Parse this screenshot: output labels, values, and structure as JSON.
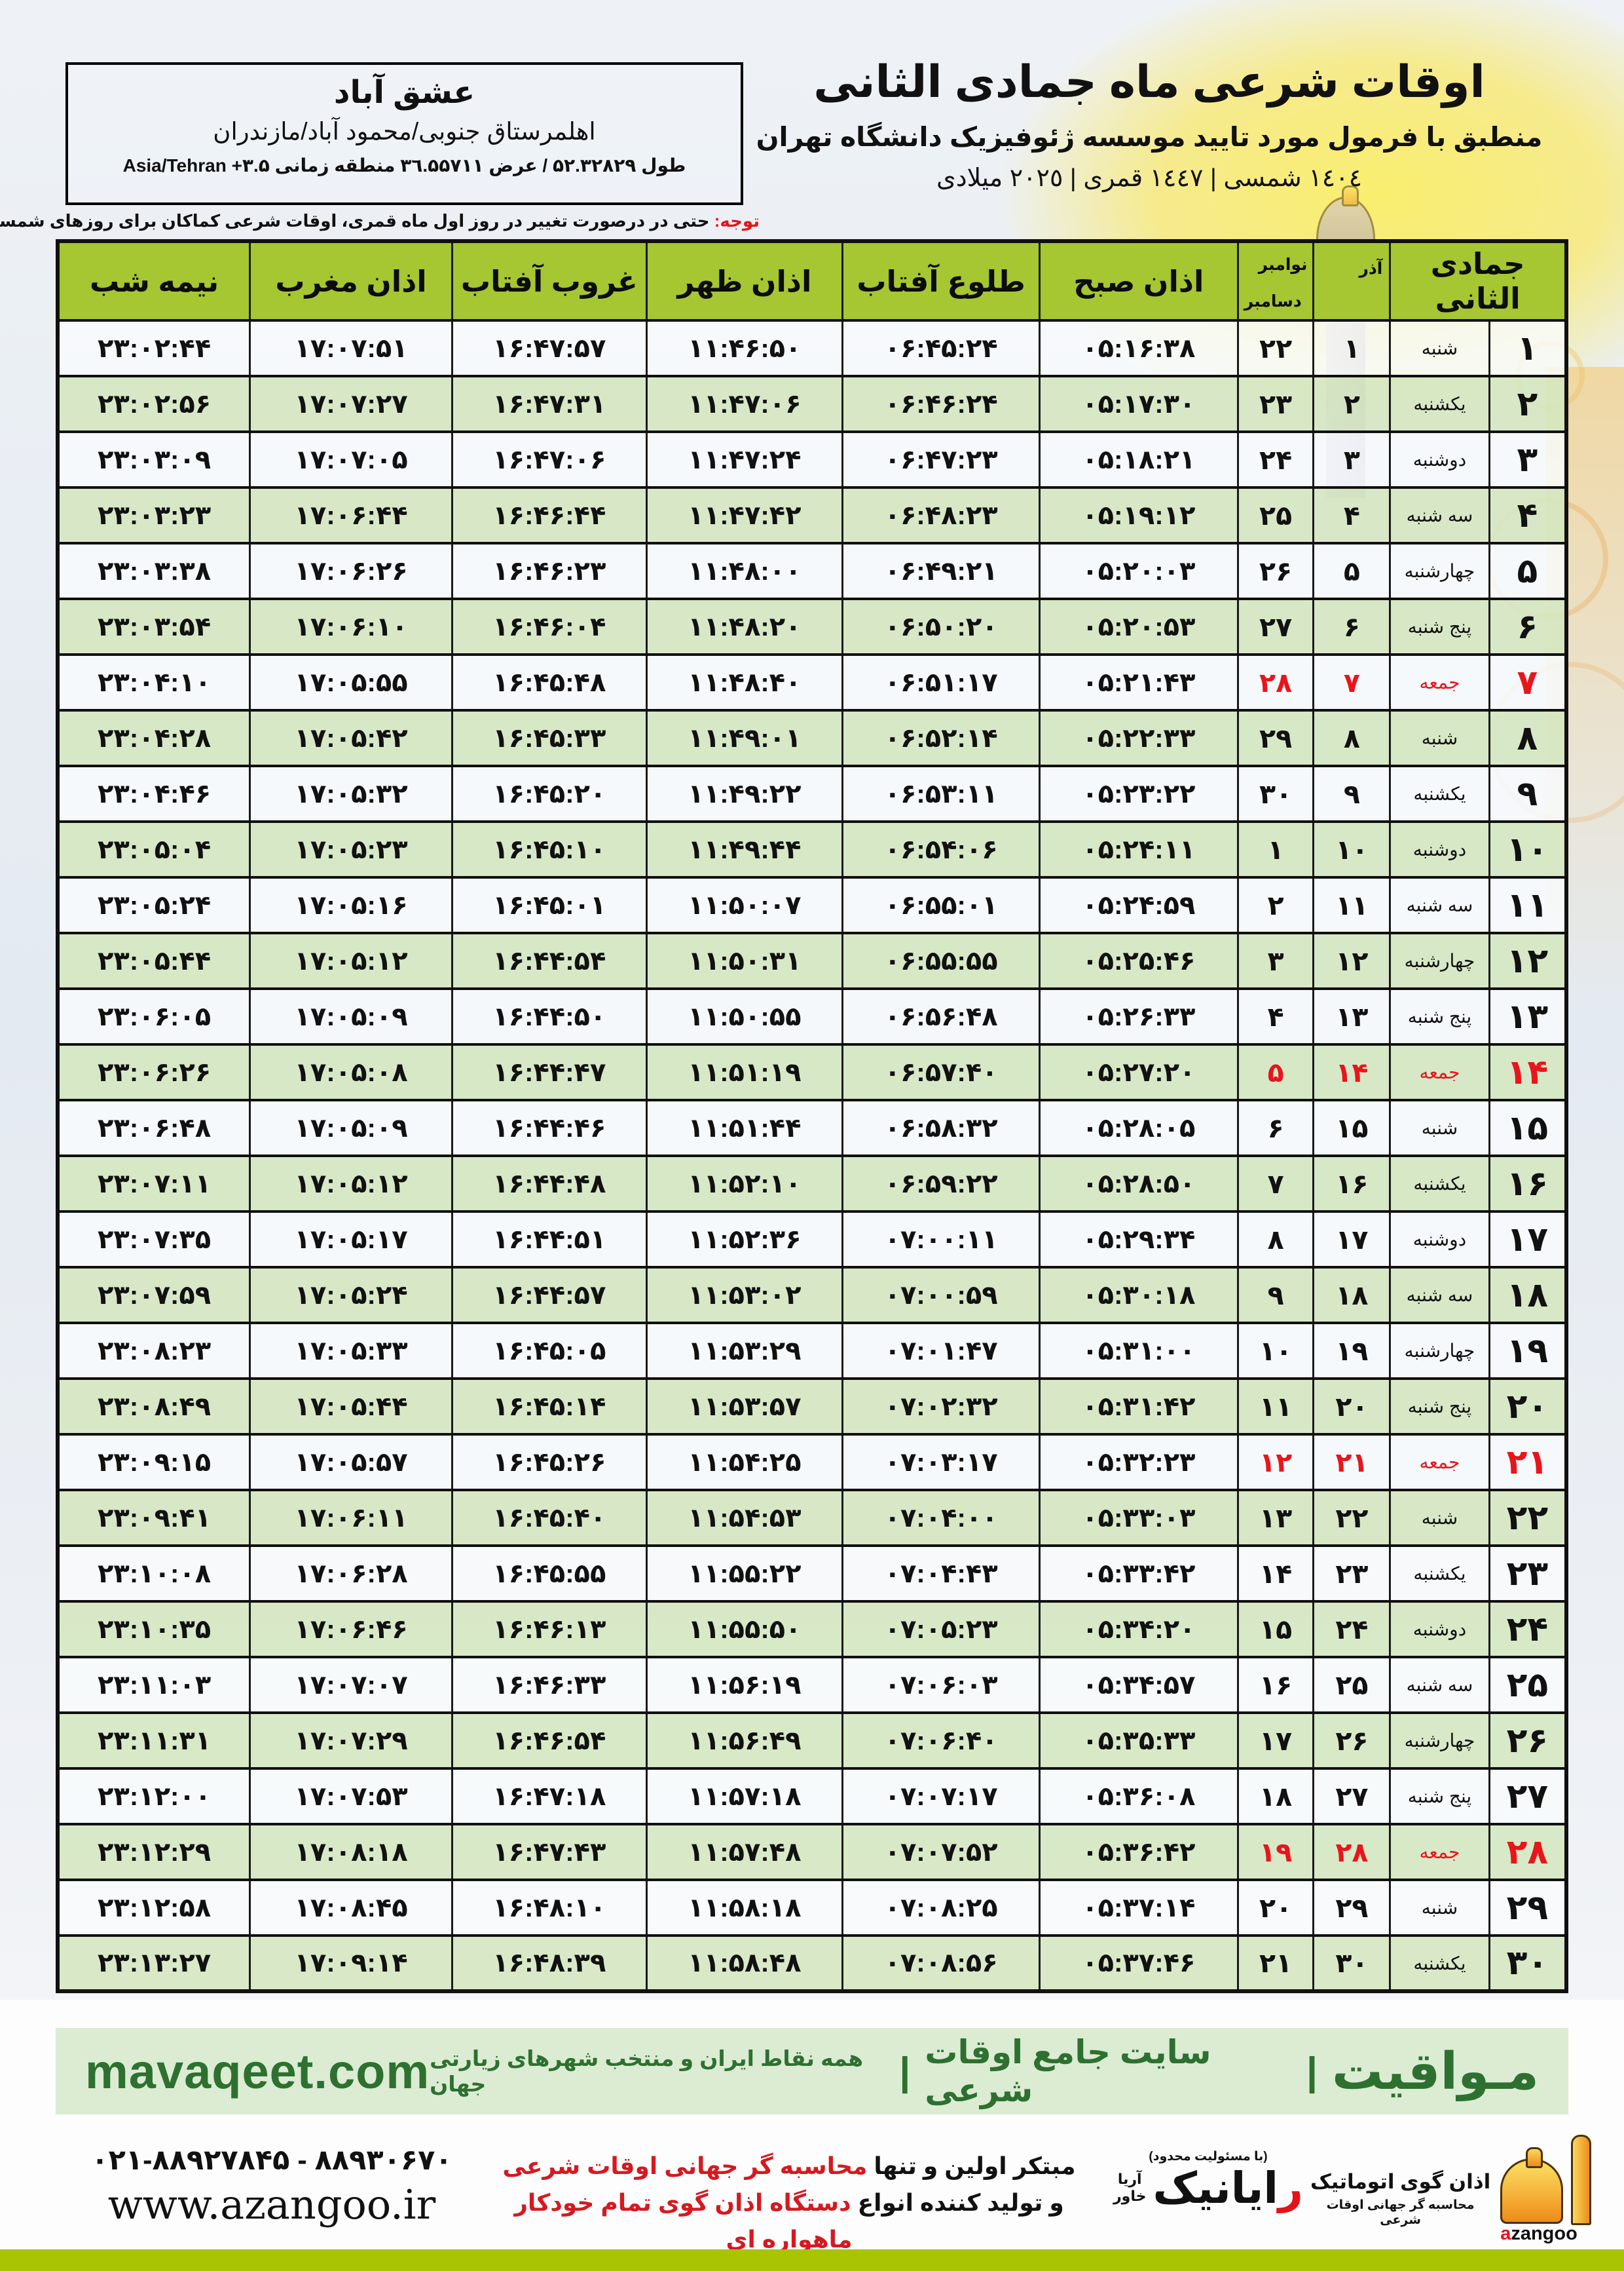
{
  "location": {
    "city": "عشق آباد",
    "region": "اهلمرستاق جنوبی/محمود آباد/مازندران",
    "coords": "طول ۵۲.۳۲۸۲۹ / عرض ۳٦.۵۵۷۱۱ منطقه زمانی Asia/Tehran +۳.۵"
  },
  "header": {
    "title": "اوقات شرعی ماه جمادی الثانی",
    "subtitle": "منطبق با فرمول مورد تایید موسسه ژئوفیزیک دانشگاه تهران",
    "dates": "١٤٠٤ شمسی | ١٤٤٧ قمری | ٢٠٢٥ میلادی"
  },
  "notice": {
    "label": "توجه:",
    "text": " حتی در درصورت تغییر در روز اول ماه قمری، اوقات شرعی کماکان برای روزهای شمسی و میلادی معتبر است."
  },
  "table": {
    "columns": {
      "month": "جمادی الثانی",
      "azar": "آذر",
      "nov": "نوامبر",
      "dec": "دسامبر",
      "fajr": "اذان صبح",
      "sunrise": "طلوع آفتاب",
      "dhuhr": "اذان ظهر",
      "sunset": "غروب آفتاب",
      "maghrib": "اذان مغرب",
      "midnight": "نیمه شب"
    },
    "rows": [
      {
        "day": 1,
        "weekday": "شنبه",
        "azar": 1,
        "greg": 22,
        "fajr": "05:16:38",
        "sunrise": "06:45:24",
        "dhuhr": "11:46:50",
        "sunset": "16:47:57",
        "maghrib": "17:07:51",
        "midnight": "23:02:44",
        "friday": false
      },
      {
        "day": 2,
        "weekday": "یکشنبه",
        "azar": 2,
        "greg": 23,
        "fajr": "05:17:30",
        "sunrise": "06:46:24",
        "dhuhr": "11:47:06",
        "sunset": "16:47:31",
        "maghrib": "17:07:27",
        "midnight": "23:02:56",
        "friday": false
      },
      {
        "day": 3,
        "weekday": "دوشنبه",
        "azar": 3,
        "greg": 24,
        "fajr": "05:18:21",
        "sunrise": "06:47:23",
        "dhuhr": "11:47:24",
        "sunset": "16:47:06",
        "maghrib": "17:07:05",
        "midnight": "23:03:09",
        "friday": false
      },
      {
        "day": 4,
        "weekday": "سه شنبه",
        "azar": 4,
        "greg": 25,
        "fajr": "05:19:12",
        "sunrise": "06:48:23",
        "dhuhr": "11:47:42",
        "sunset": "16:46:44",
        "maghrib": "17:06:44",
        "midnight": "23:03:23",
        "friday": false
      },
      {
        "day": 5,
        "weekday": "چهارشنبه",
        "azar": 5,
        "greg": 26,
        "fajr": "05:20:03",
        "sunrise": "06:49:21",
        "dhuhr": "11:48:00",
        "sunset": "16:46:23",
        "maghrib": "17:06:26",
        "midnight": "23:03:38",
        "friday": false
      },
      {
        "day": 6,
        "weekday": "پنج شنبه",
        "azar": 6,
        "greg": 27,
        "fajr": "05:20:53",
        "sunrise": "06:50:20",
        "dhuhr": "11:48:20",
        "sunset": "16:46:04",
        "maghrib": "17:06:10",
        "midnight": "23:03:54",
        "friday": false
      },
      {
        "day": 7,
        "weekday": "جمعه",
        "azar": 7,
        "greg": 28,
        "fajr": "05:21:43",
        "sunrise": "06:51:17",
        "dhuhr": "11:48:40",
        "sunset": "16:45:48",
        "maghrib": "17:05:55",
        "midnight": "23:04:10",
        "friday": true
      },
      {
        "day": 8,
        "weekday": "شنبه",
        "azar": 8,
        "greg": 29,
        "fajr": "05:22:33",
        "sunrise": "06:52:14",
        "dhuhr": "11:49:01",
        "sunset": "16:45:33",
        "maghrib": "17:05:42",
        "midnight": "23:04:28",
        "friday": false
      },
      {
        "day": 9,
        "weekday": "یکشنبه",
        "azar": 9,
        "greg": 30,
        "fajr": "05:23:22",
        "sunrise": "06:53:11",
        "dhuhr": "11:49:22",
        "sunset": "16:45:20",
        "maghrib": "17:05:32",
        "midnight": "23:04:46",
        "friday": false
      },
      {
        "day": 10,
        "weekday": "دوشنبه",
        "azar": 10,
        "greg": 1,
        "fajr": "05:24:11",
        "sunrise": "06:54:06",
        "dhuhr": "11:49:44",
        "sunset": "16:45:10",
        "maghrib": "17:05:23",
        "midnight": "23:05:04",
        "friday": false
      },
      {
        "day": 11,
        "weekday": "سه شنبه",
        "azar": 11,
        "greg": 2,
        "fajr": "05:24:59",
        "sunrise": "06:55:01",
        "dhuhr": "11:50:07",
        "sunset": "16:45:01",
        "maghrib": "17:05:16",
        "midnight": "23:05:24",
        "friday": false
      },
      {
        "day": 12,
        "weekday": "چهارشنبه",
        "azar": 12,
        "greg": 3,
        "fajr": "05:25:46",
        "sunrise": "06:55:55",
        "dhuhr": "11:50:31",
        "sunset": "16:44:54",
        "maghrib": "17:05:12",
        "midnight": "23:05:44",
        "friday": false
      },
      {
        "day": 13,
        "weekday": "پنج شنبه",
        "azar": 13,
        "greg": 4,
        "fajr": "05:26:33",
        "sunrise": "06:56:48",
        "dhuhr": "11:50:55",
        "sunset": "16:44:50",
        "maghrib": "17:05:09",
        "midnight": "23:06:05",
        "friday": false
      },
      {
        "day": 14,
        "weekday": "جمعه",
        "azar": 14,
        "greg": 5,
        "fajr": "05:27:20",
        "sunrise": "06:57:40",
        "dhuhr": "11:51:19",
        "sunset": "16:44:47",
        "maghrib": "17:05:08",
        "midnight": "23:06:26",
        "friday": true
      },
      {
        "day": 15,
        "weekday": "شنبه",
        "azar": 15,
        "greg": 6,
        "fajr": "05:28:05",
        "sunrise": "06:58:32",
        "dhuhr": "11:51:44",
        "sunset": "16:44:46",
        "maghrib": "17:05:09",
        "midnight": "23:06:48",
        "friday": false
      },
      {
        "day": 16,
        "weekday": "یکشنبه",
        "azar": 16,
        "greg": 7,
        "fajr": "05:28:50",
        "sunrise": "06:59:22",
        "dhuhr": "11:52:10",
        "sunset": "16:44:48",
        "maghrib": "17:05:12",
        "midnight": "23:07:11",
        "friday": false
      },
      {
        "day": 17,
        "weekday": "دوشنبه",
        "azar": 17,
        "greg": 8,
        "fajr": "05:29:34",
        "sunrise": "07:00:11",
        "dhuhr": "11:52:36",
        "sunset": "16:44:51",
        "maghrib": "17:05:17",
        "midnight": "23:07:35",
        "friday": false
      },
      {
        "day": 18,
        "weekday": "سه شنبه",
        "azar": 18,
        "greg": 9,
        "fajr": "05:30:18",
        "sunrise": "07:00:59",
        "dhuhr": "11:53:02",
        "sunset": "16:44:57",
        "maghrib": "17:05:24",
        "midnight": "23:07:59",
        "friday": false
      },
      {
        "day": 19,
        "weekday": "چهارشنبه",
        "azar": 19,
        "greg": 10,
        "fajr": "05:31:00",
        "sunrise": "07:01:47",
        "dhuhr": "11:53:29",
        "sunset": "16:45:05",
        "maghrib": "17:05:33",
        "midnight": "23:08:23",
        "friday": false
      },
      {
        "day": 20,
        "weekday": "پنج شنبه",
        "azar": 20,
        "greg": 11,
        "fajr": "05:31:42",
        "sunrise": "07:02:32",
        "dhuhr": "11:53:57",
        "sunset": "16:45:14",
        "maghrib": "17:05:44",
        "midnight": "23:08:49",
        "friday": false
      },
      {
        "day": 21,
        "weekday": "جمعه",
        "azar": 21,
        "greg": 12,
        "fajr": "05:32:23",
        "sunrise": "07:03:17",
        "dhuhr": "11:54:25",
        "sunset": "16:45:26",
        "maghrib": "17:05:57",
        "midnight": "23:09:15",
        "friday": true
      },
      {
        "day": 22,
        "weekday": "شنبه",
        "azar": 22,
        "greg": 13,
        "fajr": "05:33:03",
        "sunrise": "07:04:00",
        "dhuhr": "11:54:53",
        "sunset": "16:45:40",
        "maghrib": "17:06:11",
        "midnight": "23:09:41",
        "friday": false
      },
      {
        "day": 23,
        "weekday": "یکشنبه",
        "azar": 23,
        "greg": 14,
        "fajr": "05:33:42",
        "sunrise": "07:04:43",
        "dhuhr": "11:55:22",
        "sunset": "16:45:55",
        "maghrib": "17:06:28",
        "midnight": "23:10:08",
        "friday": false
      },
      {
        "day": 24,
        "weekday": "دوشنبه",
        "azar": 24,
        "greg": 15,
        "fajr": "05:34:20",
        "sunrise": "07:05:23",
        "dhuhr": "11:55:50",
        "sunset": "16:46:13",
        "maghrib": "17:06:46",
        "midnight": "23:10:35",
        "friday": false
      },
      {
        "day": 25,
        "weekday": "سه شنبه",
        "azar": 25,
        "greg": 16,
        "fajr": "05:34:57",
        "sunrise": "07:06:03",
        "dhuhr": "11:56:19",
        "sunset": "16:46:33",
        "maghrib": "17:07:07",
        "midnight": "23:11:03",
        "friday": false
      },
      {
        "day": 26,
        "weekday": "چهارشنبه",
        "azar": 26,
        "greg": 17,
        "fajr": "05:35:33",
        "sunrise": "07:06:40",
        "dhuhr": "11:56:49",
        "sunset": "16:46:54",
        "maghrib": "17:07:29",
        "midnight": "23:11:31",
        "friday": false
      },
      {
        "day": 27,
        "weekday": "پنج شنبه",
        "azar": 27,
        "greg": 18,
        "fajr": "05:36:08",
        "sunrise": "07:07:17",
        "dhuhr": "11:57:18",
        "sunset": "16:47:18",
        "maghrib": "17:07:53",
        "midnight": "23:12:00",
        "friday": false
      },
      {
        "day": 28,
        "weekday": "جمعه",
        "azar": 28,
        "greg": 19,
        "fajr": "05:36:42",
        "sunrise": "07:07:52",
        "dhuhr": "11:57:48",
        "sunset": "16:47:43",
        "maghrib": "17:08:18",
        "midnight": "23:12:29",
        "friday": true
      },
      {
        "day": 29,
        "weekday": "شنبه",
        "azar": 29,
        "greg": 20,
        "fajr": "05:37:14",
        "sunrise": "07:08:25",
        "dhuhr": "11:58:18",
        "sunset": "16:48:10",
        "maghrib": "17:08:45",
        "midnight": "23:12:58",
        "friday": false
      },
      {
        "day": 30,
        "weekday": "یکشنبه",
        "azar": 30,
        "greg": 21,
        "fajr": "05:37:46",
        "sunrise": "07:08:56",
        "dhuhr": "11:58:48",
        "sunset": "16:48:39",
        "maghrib": "17:09:14",
        "midnight": "23:13:27",
        "friday": false
      }
    ]
  },
  "footer": {
    "band": {
      "brand": "مـواقیت",
      "divider": "|",
      "site_label": "سایت جامع اوقات شرعی",
      "coverage": "همه نقاط ایران و منتخب شهرهای زیارتی جهان",
      "url": "mavaqeet.com"
    },
    "phones": "۰۲۱-۸۸۹۲۷۸۴۵ - ۸۸۹۳۰۶۷۰",
    "website": "www.azangoo.ir",
    "tagline_black_1": "مبتکر اولین و تنها ",
    "tagline_red_1": "محاسبه گر جهانی اوقات شرعی",
    "tagline_black_2": "و تولید کننده انواع ",
    "tagline_red_2": "دستگاه اذان گوی تمام خودکار ماهواره ای",
    "rayanik": {
      "note": "(با مسئولیت محدود)",
      "name_first": "ر",
      "name_rest": "ایانیک",
      "sub1": "آریا",
      "sub2": "خاور"
    },
    "azangoo": {
      "title": "اذان گوی اتوماتیک",
      "subtitle": "محاسبه گر جهانی اوقات شرعی",
      "wordmark_a": "a",
      "wordmark_rest": "zangoo"
    }
  }
}
